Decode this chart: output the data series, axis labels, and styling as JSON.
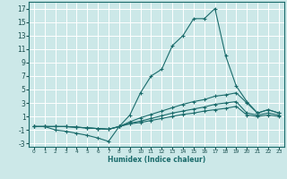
{
  "xlabel": "Humidex (Indice chaleur)",
  "bg_color": "#cce8e8",
  "grid_color": "#ffffff",
  "line_color": "#1a6b6b",
  "xlim": [
    -0.5,
    23.5
  ],
  "ylim": [
    -3.5,
    18
  ],
  "xticks": [
    0,
    1,
    2,
    3,
    4,
    5,
    6,
    7,
    8,
    9,
    10,
    11,
    12,
    13,
    14,
    15,
    16,
    17,
    18,
    19,
    20,
    21,
    22,
    23
  ],
  "yticks": [
    -3,
    -1,
    1,
    3,
    5,
    7,
    9,
    11,
    13,
    15,
    17
  ],
  "series": [
    {
      "x": [
        0,
        1,
        2,
        3,
        4,
        5,
        6,
        7,
        8,
        9,
        10,
        11,
        12,
        13,
        14,
        15,
        16,
        17,
        18,
        19,
        20,
        21,
        22,
        23
      ],
      "y": [
        -0.5,
        -0.5,
        -1.0,
        -1.2,
        -1.5,
        -1.8,
        -2.2,
        -2.7,
        -0.5,
        1.2,
        4.5,
        7.0,
        8.0,
        11.5,
        13.0,
        15.5,
        15.5,
        17.0,
        10.0,
        5.5,
        3.2,
        1.5,
        2.0,
        1.5
      ]
    },
    {
      "x": [
        0,
        1,
        2,
        3,
        4,
        5,
        6,
        7,
        8,
        9,
        10,
        11,
        12,
        13,
        14,
        15,
        16,
        17,
        18,
        19,
        20,
        21,
        22,
        23
      ],
      "y": [
        -0.5,
        -0.5,
        -0.5,
        -0.5,
        -0.6,
        -0.7,
        -0.8,
        -0.9,
        -0.5,
        0.2,
        0.8,
        1.3,
        1.8,
        2.3,
        2.8,
        3.2,
        3.5,
        4.0,
        4.2,
        4.5,
        3.0,
        1.5,
        2.0,
        1.5
      ]
    },
    {
      "x": [
        0,
        1,
        2,
        3,
        4,
        5,
        6,
        7,
        8,
        9,
        10,
        11,
        12,
        13,
        14,
        15,
        16,
        17,
        18,
        19,
        20,
        21,
        22,
        23
      ],
      "y": [
        -0.5,
        -0.5,
        -0.5,
        -0.5,
        -0.6,
        -0.7,
        -0.8,
        -0.9,
        -0.5,
        0.0,
        0.3,
        0.7,
        1.1,
        1.5,
        1.8,
        2.1,
        2.4,
        2.8,
        3.0,
        3.2,
        1.5,
        1.2,
        1.5,
        1.2
      ]
    },
    {
      "x": [
        0,
        1,
        2,
        3,
        4,
        5,
        6,
        7,
        8,
        9,
        10,
        11,
        12,
        13,
        14,
        15,
        16,
        17,
        18,
        19,
        20,
        21,
        22,
        23
      ],
      "y": [
        -0.5,
        -0.5,
        -0.5,
        -0.5,
        -0.6,
        -0.7,
        -0.8,
        -0.9,
        -0.5,
        -0.1,
        0.1,
        0.4,
        0.7,
        1.0,
        1.3,
        1.5,
        1.8,
        2.0,
        2.2,
        2.5,
        1.2,
        1.0,
        1.2,
        1.0
      ]
    }
  ]
}
